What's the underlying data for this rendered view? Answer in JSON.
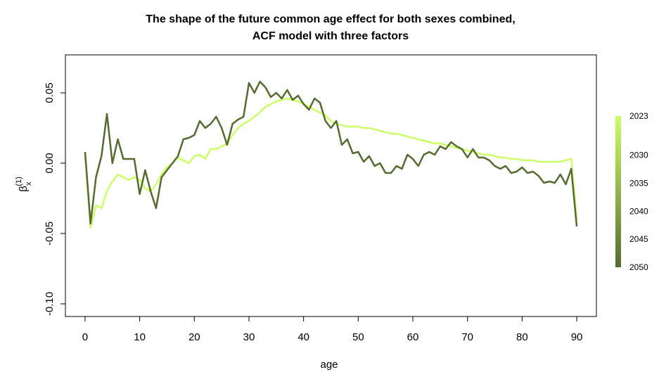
{
  "chart_data": {
    "type": "line",
    "title": [
      "The shape of the future common age effect for both sexes combined,",
      "ACF model with three factors"
    ],
    "xlabel": "age",
    "ylabel": {
      "symbol": "β",
      "subscript": "x",
      "superscript": "(1)"
    },
    "x": [
      0,
      1,
      2,
      3,
      4,
      5,
      6,
      7,
      8,
      9,
      10,
      11,
      12,
      13,
      14,
      15,
      16,
      17,
      18,
      19,
      20,
      21,
      22,
      23,
      24,
      25,
      26,
      27,
      28,
      29,
      30,
      31,
      32,
      33,
      34,
      35,
      36,
      37,
      38,
      39,
      40,
      41,
      42,
      43,
      44,
      45,
      46,
      47,
      48,
      49,
      50,
      51,
      52,
      53,
      54,
      55,
      56,
      57,
      58,
      59,
      60,
      61,
      62,
      63,
      64,
      65,
      66,
      67,
      68,
      69,
      70,
      71,
      72,
      73,
      74,
      75,
      76,
      77,
      78,
      79,
      80,
      81,
      82,
      83,
      84,
      85,
      86,
      87,
      88,
      89,
      90
    ],
    "series": [
      {
        "name": "2023",
        "color": "#ccff66",
        "values": [
          0.008,
          -0.046,
          -0.03,
          -0.032,
          -0.02,
          -0.013,
          -0.008,
          -0.01,
          -0.012,
          -0.01,
          -0.012,
          -0.018,
          -0.02,
          -0.015,
          -0.008,
          -0.003,
          0.0,
          0.004,
          0.002,
          0.0,
          0.005,
          0.006,
          0.003,
          0.01,
          0.01,
          0.012,
          0.014,
          0.02,
          0.025,
          0.028,
          0.03,
          0.033,
          0.036,
          0.04,
          0.042,
          0.044,
          0.045,
          0.046,
          0.045,
          0.044,
          0.042,
          0.04,
          0.038,
          0.036,
          0.034,
          0.03,
          0.028,
          0.027,
          0.026,
          0.026,
          0.026,
          0.025,
          0.025,
          0.024,
          0.023,
          0.022,
          0.021,
          0.021,
          0.02,
          0.019,
          0.018,
          0.017,
          0.016,
          0.015,
          0.014,
          0.014,
          0.013,
          0.012,
          0.011,
          0.01,
          0.009,
          0.008,
          0.007,
          0.006,
          0.006,
          0.005,
          0.004,
          0.004,
          0.003,
          0.003,
          0.002,
          0.002,
          0.002,
          0.001,
          0.001,
          0.001,
          0.001,
          0.001,
          0.002,
          0.003,
          -0.04
        ]
      },
      {
        "name": "2050",
        "color": "#556b2f",
        "values": [
          0.008,
          -0.043,
          -0.01,
          0.005,
          0.035,
          0.0,
          0.017,
          0.003,
          0.003,
          0.003,
          -0.022,
          -0.005,
          -0.02,
          -0.032,
          -0.01,
          -0.005,
          0.0,
          0.005,
          0.017,
          0.018,
          0.02,
          0.03,
          0.025,
          0.028,
          0.033,
          0.025,
          0.013,
          0.028,
          0.031,
          0.033,
          0.057,
          0.05,
          0.058,
          0.054,
          0.047,
          0.05,
          0.046,
          0.052,
          0.045,
          0.048,
          0.042,
          0.038,
          0.046,
          0.043,
          0.03,
          0.025,
          0.03,
          0.013,
          0.017,
          0.007,
          0.008,
          0.001,
          0.005,
          -0.002,
          0.0,
          -0.007,
          -0.007,
          -0.002,
          -0.004,
          0.006,
          0.003,
          -0.002,
          0.006,
          0.008,
          0.006,
          0.012,
          0.01,
          0.015,
          0.012,
          0.01,
          0.004,
          0.01,
          0.004,
          0.004,
          0.002,
          -0.002,
          -0.004,
          -0.002,
          -0.007,
          -0.006,
          -0.003,
          -0.007,
          -0.006,
          -0.009,
          -0.014,
          -0.013,
          -0.014,
          -0.008,
          -0.015,
          -0.004,
          -0.045
        ]
      }
    ],
    "xlim": [
      -3.6,
      93.6
    ],
    "xticks": [
      0,
      10,
      20,
      30,
      40,
      50,
      60,
      70,
      80,
      90
    ],
    "ylim": [
      -0.109,
      0.077
    ],
    "yticks": [
      {
        "value": -0.1,
        "label": "-0.10"
      },
      -0.05,
      {
        "value": 0,
        "label": "0.00"
      },
      0.05
    ],
    "colorbar": {
      "lim": [
        2023,
        2050
      ],
      "ticks": [
        2023,
        2030,
        2035,
        2040,
        2045,
        2050
      ],
      "colors": [
        "#ccff66",
        "#556b2f"
      ]
    }
  }
}
